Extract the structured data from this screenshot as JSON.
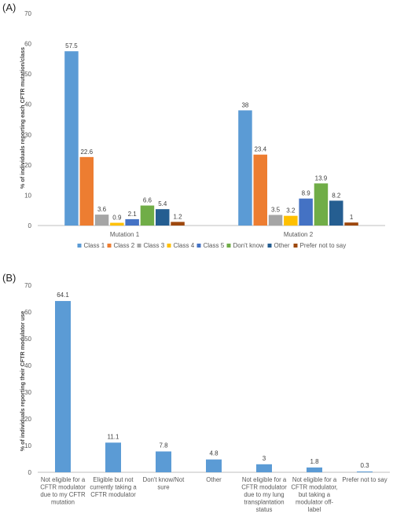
{
  "panels": [
    {
      "label": "(A)",
      "ylabel": "% of individuals reporting each CFTR mutation/class"
    },
    {
      "label": "(B)",
      "ylabel": "% of individuals reporting their CFTR modulator use"
    }
  ],
  "chart_data": [
    {
      "type": "bar",
      "title": "",
      "xlabel": "",
      "ylabel": "% of individuals reporting each CFTR mutation/class",
      "categories": [
        "Mutation 1",
        "Mutation 2"
      ],
      "series": [
        {
          "name": "Class 1",
          "color": "#5B9BD5",
          "values": [
            57.5,
            38
          ]
        },
        {
          "name": "Class 2",
          "color": "#ED7D31",
          "values": [
            22.6,
            23.4
          ]
        },
        {
          "name": "Class 3",
          "color": "#A5A5A5",
          "values": [
            3.6,
            3.5
          ]
        },
        {
          "name": "Class 4",
          "color": "#FFC000",
          "values": [
            0.9,
            3.2
          ]
        },
        {
          "name": "Class 5",
          "color": "#4472C4",
          "values": [
            2.1,
            8.9
          ]
        },
        {
          "name": "Don't know",
          "color": "#70AD47",
          "values": [
            6.6,
            13.9
          ]
        },
        {
          "name": "Other",
          "color": "#255E91",
          "values": [
            5.4,
            8.2
          ]
        },
        {
          "name": "Prefer not to say",
          "color": "#9E480E",
          "values": [
            1.2,
            1
          ]
        }
      ],
      "ylim": [
        0,
        70
      ],
      "yticks": [
        0,
        10,
        20,
        30,
        40,
        50,
        60,
        70
      ],
      "grid": false,
      "legend": "bottom"
    },
    {
      "type": "bar",
      "title": "",
      "xlabel": "",
      "ylabel": "% of individuals reporting their CFTR modulator use",
      "categories": [
        [
          "Not eligible for a",
          "CFTR modulator",
          "due to my CFTR",
          "mutation"
        ],
        [
          "Eligible but not",
          "currently taking a",
          "CFTR modulator"
        ],
        [
          "Don't know/Not",
          "sure"
        ],
        [
          "Other"
        ],
        [
          "Not eligible for a",
          "CFTR modulator",
          "due to my lung",
          "transplantation",
          "status"
        ],
        [
          "Not eligible for a",
          "CFTR modulator,",
          "but taking a",
          "modulator off-",
          "label"
        ],
        [
          "Prefer not to say"
        ]
      ],
      "values": [
        64.1,
        11.1,
        7.8,
        4.8,
        3,
        1.8,
        0.3
      ],
      "value_labels": [
        "64.1",
        "11.1",
        "7.8",
        "4.8",
        "3",
        "1.8",
        "0.3"
      ],
      "color": "#5B9BD5",
      "ylim": [
        0,
        70
      ],
      "yticks": [
        0,
        10,
        20,
        30,
        40,
        50,
        60,
        70
      ],
      "grid": false
    }
  ]
}
